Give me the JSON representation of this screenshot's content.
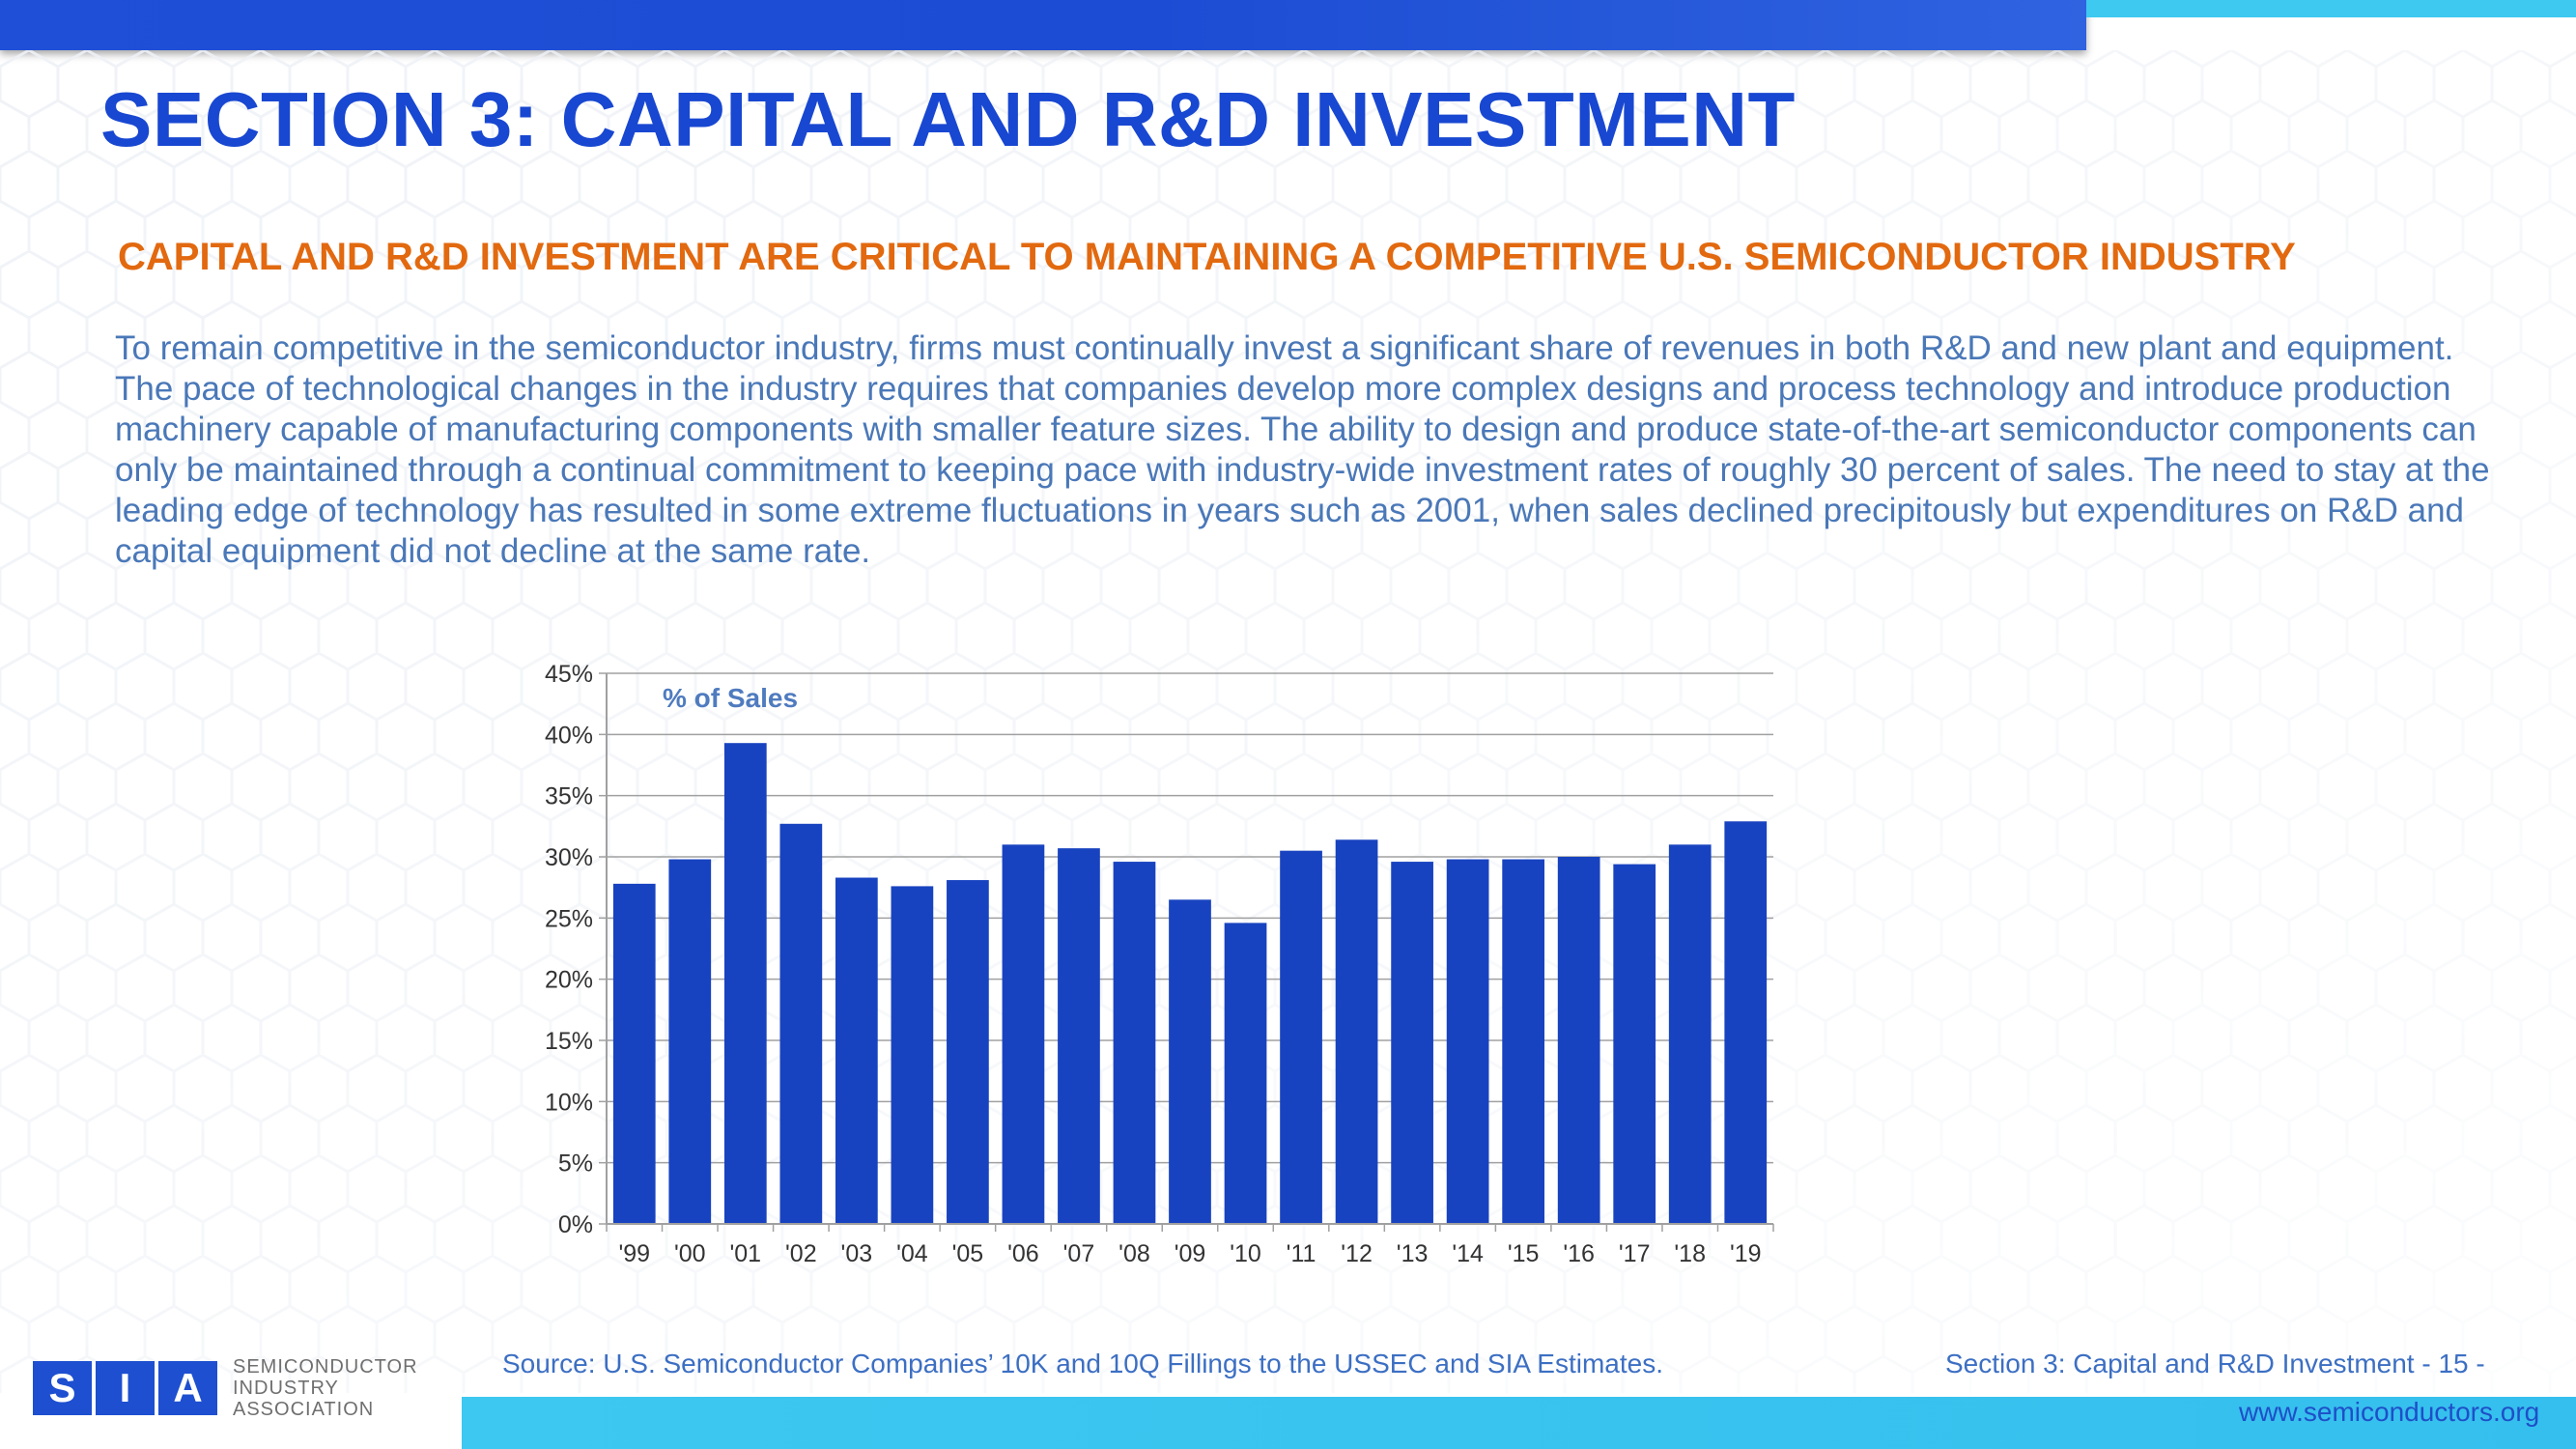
{
  "header": {
    "title": "SECTION 3: CAPITAL AND R&D INVESTMENT",
    "subtitle": "CAPITAL AND R&D INVESTMENT ARE CRITICAL TO MAINTAINING A COMPETITIVE U.S. SEMICONDUCTOR INDUSTRY"
  },
  "body": {
    "paragraph": "To remain competitive in the semiconductor industry, firms must continually invest a significant share of revenues in both R&D and new plant and equipment. The pace of technological changes in the industry requires that companies develop more complex designs and process technology and introduce production machinery capable of manufacturing components with smaller feature sizes. The ability to design and produce state-of-the-art semiconductor components can only be maintained through a continual commitment to keeping pace with industry-wide investment rates of roughly 30 percent of sales. The need to stay at the leading edge of technology has resulted in some extreme fluctuations in years such as 2001, when sales declined precipitously but expenditures on R&D and capital equipment did not decline at the same rate."
  },
  "chart_data": {
    "type": "bar",
    "title": "",
    "annotation": "% of Sales",
    "xlabel": "",
    "ylabel": "",
    "ylim": [
      0,
      45
    ],
    "yticks": [
      "0%",
      "5%",
      "10%",
      "15%",
      "20%",
      "25%",
      "30%",
      "35%",
      "40%",
      "45%"
    ],
    "ytick_values": [
      0,
      5,
      10,
      15,
      20,
      25,
      30,
      35,
      40,
      45
    ],
    "categories": [
      "'99",
      "'00",
      "'01",
      "'02",
      "'03",
      "'04",
      "'05",
      "'06",
      "'07",
      "'08",
      "'09",
      "'10",
      "'11",
      "'12",
      "'13",
      "'14",
      "'15",
      "'16",
      "'17",
      "'18",
      "'19"
    ],
    "values": [
      27.8,
      29.8,
      39.3,
      32.7,
      28.3,
      27.6,
      28.1,
      31.0,
      30.7,
      29.6,
      26.5,
      24.6,
      30.5,
      31.4,
      29.6,
      29.8,
      29.8,
      30.0,
      29.4,
      31.0,
      32.9
    ],
    "grid": true,
    "bar_color": "#1843c0"
  },
  "footer": {
    "logo_letters": [
      "S",
      "I",
      "A"
    ],
    "logo_words": [
      "SEMICONDUCTOR",
      "INDUSTRY",
      "ASSOCIATION"
    ],
    "source": "Source: U.S. Semiconductor Companies’ 10K and 10Q Fillings to the USSEC and SIA Estimates.",
    "section_page": "Section 3: Capital and R&D Investment  - 15 -",
    "website": "www.semiconductors.org"
  },
  "colors": {
    "title": "#1847d1",
    "subtitle": "#e2690f",
    "body_text": "#4a78b8",
    "band_blue": "#1f4fd6",
    "band_cyan": "#3ec9f1"
  }
}
